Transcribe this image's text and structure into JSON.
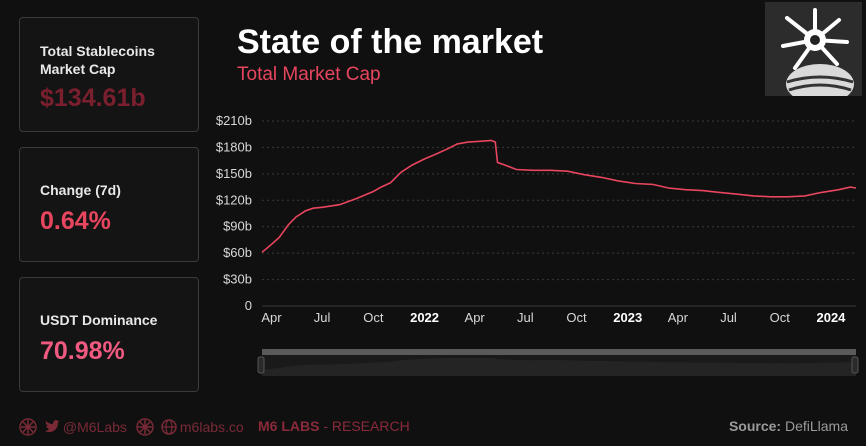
{
  "cards": [
    {
      "label": "Total Stablecoins Market Cap",
      "value": "$134.61b"
    },
    {
      "label": "Change (7d)",
      "value": "0.64%"
    },
    {
      "label": "USDT Dominance",
      "value": "70.98%"
    }
  ],
  "header": {
    "title": "State of the market",
    "subtitle": "Total Market Cap"
  },
  "colors": {
    "line": "#e8455f",
    "accent": "#e8455f"
  },
  "footer": {
    "twitter": "@M6Labs",
    "website": "m6labs.co",
    "brand": "M6 LABS",
    "brand_suffix": " - RESEARCH",
    "source_label": "Source:",
    "source": " DefiLlama"
  },
  "chart_data": {
    "type": "line",
    "title": "Total Market Cap",
    "x_ticks": [
      {
        "label": "Apr",
        "date": "2021-04-01",
        "year": false
      },
      {
        "label": "Jul",
        "date": "2021-07-01",
        "year": false
      },
      {
        "label": "Oct",
        "date": "2021-10-01",
        "year": false
      },
      {
        "label": "2022",
        "date": "2022-01-01",
        "year": true
      },
      {
        "label": "Apr",
        "date": "2022-04-01",
        "year": false
      },
      {
        "label": "Jul",
        "date": "2022-07-01",
        "year": false
      },
      {
        "label": "Oct",
        "date": "2022-10-01",
        "year": false
      },
      {
        "label": "2023",
        "date": "2023-01-01",
        "year": true
      },
      {
        "label": "Apr",
        "date": "2023-04-01",
        "year": false
      },
      {
        "label": "Jul",
        "date": "2023-07-01",
        "year": false
      },
      {
        "label": "Oct",
        "date": "2023-10-01",
        "year": false
      },
      {
        "label": "2024",
        "date": "2024-01-01",
        "year": true
      }
    ],
    "y_ticks": [
      0,
      30,
      60,
      90,
      120,
      150,
      180,
      210
    ],
    "y_tick_labels": [
      "0",
      "$30b",
      "$60b",
      "$90b",
      "$120b",
      "$150b",
      "$180b",
      "$210b"
    ],
    "ylim": [
      0,
      210
    ],
    "xlim": [
      "2021-03-15",
      "2024-02-15"
    ],
    "grid": true,
    "series": [
      {
        "values": [
          [
            "2021-03-15",
            61
          ],
          [
            "2021-04-01",
            70
          ],
          [
            "2021-04-15",
            78
          ],
          [
            "2021-05-01",
            92
          ],
          [
            "2021-05-15",
            101
          ],
          [
            "2021-06-01",
            108
          ],
          [
            "2021-06-15",
            111
          ],
          [
            "2021-07-01",
            112
          ],
          [
            "2021-08-01",
            115
          ],
          [
            "2021-09-01",
            122
          ],
          [
            "2021-10-01",
            130
          ],
          [
            "2021-10-15",
            135
          ],
          [
            "2021-11-01",
            140
          ],
          [
            "2021-11-20",
            152
          ],
          [
            "2021-12-10",
            160
          ],
          [
            "2022-01-01",
            167
          ],
          [
            "2022-01-20",
            172
          ],
          [
            "2022-02-10",
            178
          ],
          [
            "2022-03-01",
            184
          ],
          [
            "2022-03-20",
            186
          ],
          [
            "2022-04-10",
            187
          ],
          [
            "2022-05-01",
            188
          ],
          [
            "2022-05-08",
            186
          ],
          [
            "2022-05-12",
            163
          ],
          [
            "2022-05-25",
            160
          ],
          [
            "2022-06-15",
            155
          ],
          [
            "2022-07-15",
            154
          ],
          [
            "2022-08-15",
            154
          ],
          [
            "2022-09-15",
            153
          ],
          [
            "2022-10-15",
            149
          ],
          [
            "2022-11-15",
            146
          ],
          [
            "2022-12-15",
            142
          ],
          [
            "2023-01-15",
            139
          ],
          [
            "2023-02-15",
            138
          ],
          [
            "2023-03-15",
            134
          ],
          [
            "2023-04-15",
            132
          ],
          [
            "2023-05-15",
            131
          ],
          [
            "2023-06-15",
            129
          ],
          [
            "2023-07-15",
            127
          ],
          [
            "2023-08-15",
            125
          ],
          [
            "2023-09-15",
            124
          ],
          [
            "2023-10-15",
            124
          ],
          [
            "2023-11-15",
            125
          ],
          [
            "2023-12-15",
            129
          ],
          [
            "2024-01-15",
            132
          ],
          [
            "2024-02-05",
            135
          ],
          [
            "2024-02-15",
            134
          ]
        ]
      }
    ]
  }
}
